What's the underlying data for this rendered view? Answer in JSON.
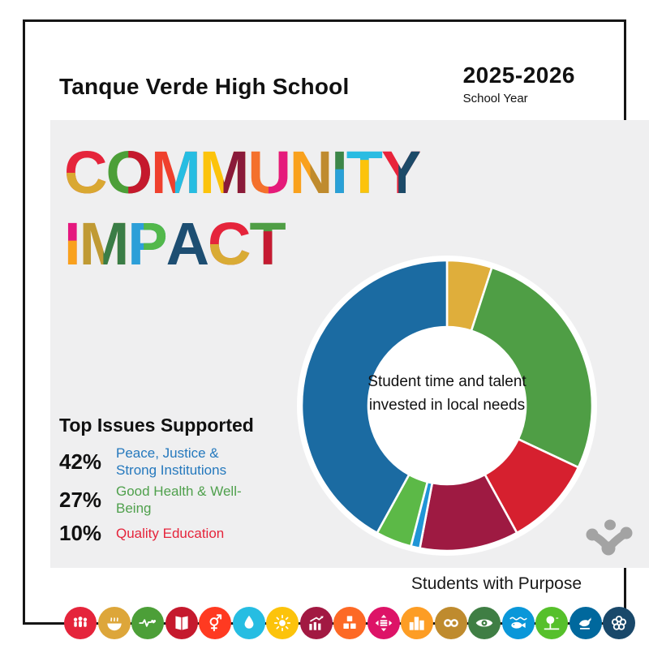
{
  "header": {
    "school_name": "Tanque Verde High School",
    "year": "2025-2026",
    "year_label": "School Year"
  },
  "title": {
    "text": "COMMUNITY IMPACT",
    "line1": [
      {
        "ch": "C",
        "dir": "v",
        "split": 50,
        "c1": "#e5243b",
        "c2": "#d9a832"
      },
      {
        "ch": "O",
        "dir": "h",
        "split": 50,
        "c1": "#4c9f38",
        "c2": "#c5192d"
      },
      {
        "ch": "M",
        "dir": "h",
        "split": 50,
        "c1": "#ef402d",
        "c2": "#26bde2"
      },
      {
        "ch": "M",
        "dir": "h",
        "split": 50,
        "c1": "#fcc30b",
        "c2": "#8a1a39"
      },
      {
        "ch": "U",
        "dir": "h",
        "split": 50,
        "c1": "#f4702c",
        "c2": "#e51a7b"
      },
      {
        "ch": "N",
        "dir": "h",
        "split": 50,
        "c1": "#f9a11d",
        "c2": "#bf8b2e"
      },
      {
        "ch": "I",
        "dir": "v",
        "split": 45,
        "c1": "#3c8648",
        "c2": "#29a0d8"
      },
      {
        "ch": "T",
        "dir": "v",
        "split": 32,
        "c1": "#29bce2",
        "c2": "#fcc30b"
      },
      {
        "ch": "Y",
        "dir": "h",
        "split": 45,
        "c1": "#e8243b",
        "c2": "#1c4a68"
      }
    ],
    "line2": [
      {
        "ch": "I",
        "dir": "v",
        "split": 45,
        "c1": "#e5177e",
        "c2": "#f9a11d"
      },
      {
        "ch": "M",
        "dir": "h",
        "split": 50,
        "c1": "#c09a34",
        "c2": "#3a7d46"
      },
      {
        "ch": "P",
        "dir": "h",
        "split": 42,
        "c1": "#2d9fd8",
        "c2": "#52b84b"
      },
      {
        "ch": "A",
        "dir": "v",
        "split": 50,
        "c1": "#1d4e72",
        "c2": "#1d4e72"
      },
      {
        "ch": "C",
        "dir": "v",
        "split": 50,
        "c1": "#e5243b",
        "c2": "#d9ab35"
      },
      {
        "ch": "T",
        "dir": "v",
        "split": 32,
        "c1": "#4f9e45",
        "c2": "#c51a32"
      }
    ]
  },
  "chart_data": {
    "type": "pie",
    "variant": "donut",
    "center_label": "Student time and talent invested in local needs",
    "start_angle_deg": 0,
    "direction": "clockwise",
    "inner_radius_ratio": 0.54,
    "ring_outline_color": "#ffffff",
    "segments": [
      {
        "label": "",
        "color_name": "gold",
        "value": 5,
        "color": "#dfae3b"
      },
      {
        "label": "Good Health & Well-Being",
        "color_name": "green",
        "value": 27,
        "color": "#4f9e45"
      },
      {
        "label": "Quality Education",
        "color_name": "red",
        "value": 10,
        "color": "#d6202f"
      },
      {
        "label": "",
        "color_name": "maroon",
        "value": 11,
        "color": "#9e1a42"
      },
      {
        "label": "",
        "color_name": "light-blue",
        "value": 1,
        "color": "#2095d6"
      },
      {
        "label": "",
        "color_name": "bright-green",
        "value": 4,
        "color": "#5cb947"
      },
      {
        "label": "Peace, Justice & Strong Institutions",
        "color_name": "blue",
        "value": 42,
        "color": "#1b6ba2"
      }
    ]
  },
  "top_issues": {
    "title": "Top Issues Supported",
    "items": [
      {
        "pct": "42%",
        "lines": [
          "Peace, Justice &",
          "Strong Institutions"
        ],
        "color": "#2478bd"
      },
      {
        "pct": "27%",
        "lines": [
          "Good Health & Well-",
          "Being"
        ],
        "color": "#4fa04c"
      },
      {
        "pct": "10%",
        "lines": [
          "Quality Education"
        ],
        "color": "#e5243b"
      }
    ]
  },
  "footer": {
    "brand": "Students with Purpose",
    "logo_color": "#a3a3a3"
  },
  "sdg_icons": [
    {
      "name": "sdg-no-poverty-icon",
      "color": "#e5243b",
      "glyph": "people"
    },
    {
      "name": "sdg-zero-hunger-icon",
      "color": "#dda63a",
      "glyph": "bowl"
    },
    {
      "name": "sdg-good-health-icon",
      "color": "#4c9f38",
      "glyph": "heartbeat"
    },
    {
      "name": "sdg-quality-education-icon",
      "color": "#c5192d",
      "glyph": "book"
    },
    {
      "name": "sdg-gender-equality-icon",
      "color": "#ff3a21",
      "glyph": "gender"
    },
    {
      "name": "sdg-clean-water-icon",
      "color": "#26bde2",
      "glyph": "water"
    },
    {
      "name": "sdg-affordable-energy-icon",
      "color": "#fcc30b",
      "glyph": "sun"
    },
    {
      "name": "sdg-decent-work-icon",
      "color": "#a21942",
      "glyph": "chart"
    },
    {
      "name": "sdg-industry-innovation-icon",
      "color": "#fd6925",
      "glyph": "cubes"
    },
    {
      "name": "sdg-reduced-inequalities-icon",
      "color": "#dd1367",
      "glyph": "equality"
    },
    {
      "name": "sdg-sustainable-cities-icon",
      "color": "#fd9d24",
      "glyph": "city"
    },
    {
      "name": "sdg-responsible-consumption-icon",
      "color": "#bf8b2e",
      "glyph": "infinity"
    },
    {
      "name": "sdg-climate-action-icon",
      "color": "#3f7e44",
      "glyph": "eye"
    },
    {
      "name": "sdg-life-below-water-icon",
      "color": "#0a97d9",
      "glyph": "fish"
    },
    {
      "name": "sdg-life-on-land-icon",
      "color": "#56c02b",
      "glyph": "tree"
    },
    {
      "name": "sdg-peace-justice-icon",
      "color": "#00689d",
      "glyph": "dove"
    },
    {
      "name": "sdg-partnerships-icon",
      "color": "#19486a",
      "glyph": "wheel"
    }
  ]
}
